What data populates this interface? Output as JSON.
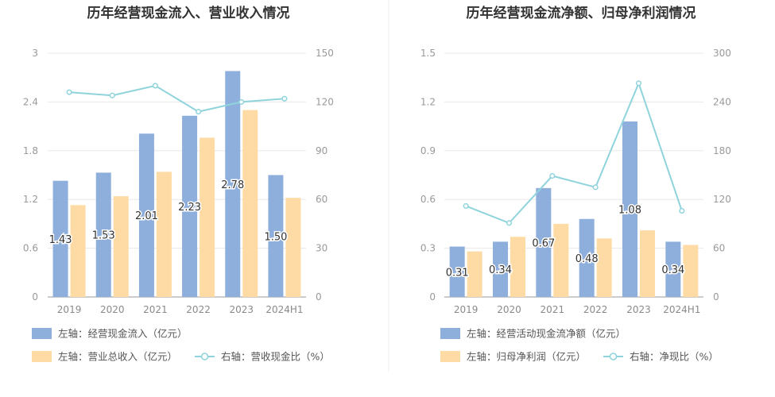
{
  "colors": {
    "bar_primary": "#8eaedc",
    "bar_secondary": "#fedba4",
    "line": "#8fd3dc",
    "grid": "#e8e8e8",
    "divider": "#eeeeee"
  },
  "chart_data": [
    {
      "type": "bar",
      "title": "历年经营现金流入、营业收入情况",
      "categories": [
        "2019",
        "2020",
        "2021",
        "2022",
        "2023",
        "2024H1"
      ],
      "y_left": {
        "ticks": [
          "0",
          "0.6",
          "1.2",
          "1.8",
          "2.4",
          "3"
        ],
        "lim": [
          0,
          3
        ]
      },
      "y_right": {
        "ticks": [
          "0",
          "30",
          "60",
          "90",
          "120",
          "150"
        ],
        "lim": [
          0,
          150
        ]
      },
      "series": [
        {
          "name": "经营现金流入",
          "axis": "left",
          "type": "bar",
          "color_key": "bar_primary",
          "values": [
            1.43,
            1.53,
            2.01,
            2.23,
            2.78,
            1.5
          ],
          "labels": [
            "1.43",
            "1.53",
            "2.01",
            "2.23",
            "2.78",
            "1.50"
          ]
        },
        {
          "name": "营业总收入",
          "axis": "left",
          "type": "bar",
          "color_key": "bar_secondary",
          "values": [
            1.13,
            1.24,
            1.54,
            1.96,
            2.3,
            1.22
          ]
        },
        {
          "name": "营收现金比",
          "axis": "right",
          "type": "line",
          "color_key": "line",
          "values": [
            126,
            124,
            130,
            114,
            120,
            122
          ]
        }
      ],
      "legend": [
        {
          "text": "左轴：经营现金流入（亿元）",
          "kind": "box",
          "color_key": "bar_primary"
        },
        {
          "text": "左轴：营业总收入（亿元）",
          "kind": "box",
          "color_key": "bar_secondary"
        },
        {
          "text": "右轴：营收现金比（%）",
          "kind": "line",
          "color_key": "line"
        }
      ]
    },
    {
      "type": "bar",
      "title": "历年经营现金流净额、归母净利润情况",
      "categories": [
        "2019",
        "2020",
        "2021",
        "2022",
        "2023",
        "2024H1"
      ],
      "y_left": {
        "ticks": [
          "0",
          "0.3",
          "0.6",
          "0.9",
          "1.2",
          "1.5"
        ],
        "lim": [
          0,
          1.5
        ]
      },
      "y_right": {
        "ticks": [
          "0",
          "60",
          "120",
          "180",
          "240",
          "300"
        ],
        "lim": [
          0,
          300
        ]
      },
      "series": [
        {
          "name": "经营活动现金流净额",
          "axis": "left",
          "type": "bar",
          "color_key": "bar_primary",
          "values": [
            0.31,
            0.34,
            0.67,
            0.48,
            1.08,
            0.34
          ],
          "labels": [
            "0.31",
            "0.34",
            "0.67",
            "0.48",
            "1.08",
            "0.34"
          ]
        },
        {
          "name": "归母净利润",
          "axis": "left",
          "type": "bar",
          "color_key": "bar_secondary",
          "values": [
            0.28,
            0.37,
            0.45,
            0.36,
            0.41,
            0.32
          ]
        },
        {
          "name": "净现比",
          "axis": "right",
          "type": "line",
          "color_key": "line",
          "values": [
            112,
            91,
            149,
            135,
            263,
            106
          ]
        }
      ],
      "legend": [
        {
          "text": "左轴：经营活动现金流净额（亿元）",
          "kind": "box",
          "color_key": "bar_primary"
        },
        {
          "text": "左轴：归母净利润（亿元）",
          "kind": "box",
          "color_key": "bar_secondary"
        },
        {
          "text": "右轴：净现比（%）",
          "kind": "line",
          "color_key": "line"
        }
      ]
    }
  ]
}
